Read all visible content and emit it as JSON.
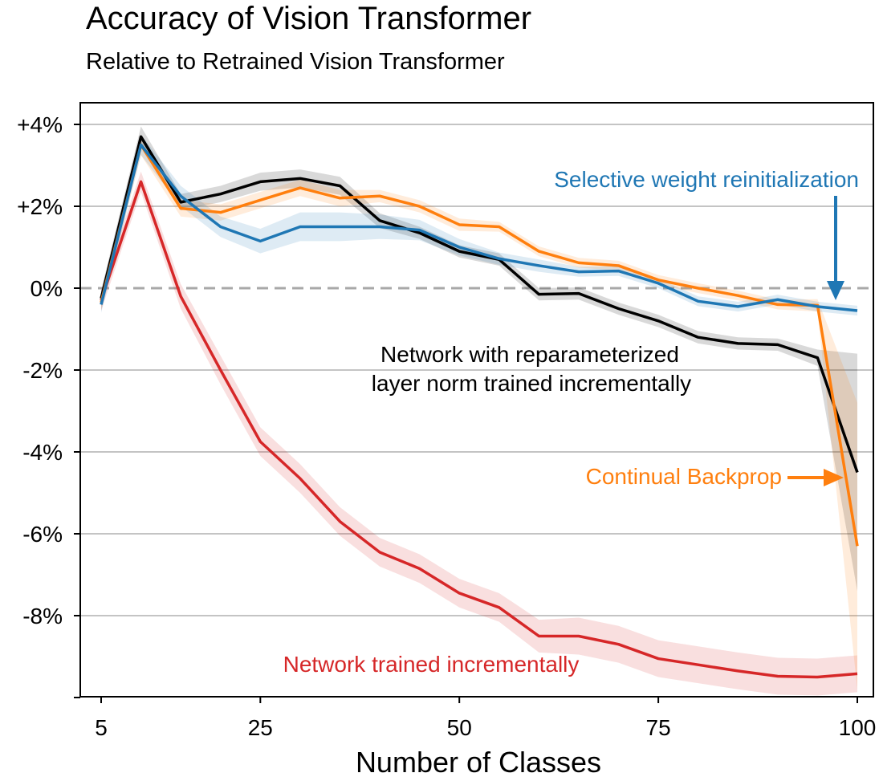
{
  "chart_data": {
    "type": "line",
    "title": "Accuracy of Vision Transformer",
    "subtitle": "Relative to Retrained Vision Transformer",
    "xlabel": "Number of Classes",
    "ylabel": "",
    "xlim": [
      5,
      100
    ],
    "ylim": [
      -9.9,
      4.5
    ],
    "x_ticks": [
      5,
      25,
      50,
      75,
      100
    ],
    "x_tick_labels": [
      "5",
      "25",
      "50",
      "75",
      "100"
    ],
    "y_ticks": [
      4,
      2,
      0,
      -2,
      -4,
      -6,
      -8
    ],
    "y_tick_labels": [
      "+4%",
      "+2%",
      "0%",
      "-2%",
      "-4%",
      "-6%",
      "-8%"
    ],
    "grid": "horizontal",
    "reference_line": 0,
    "x": [
      5,
      10,
      15,
      20,
      25,
      30,
      35,
      40,
      45,
      50,
      55,
      60,
      65,
      70,
      75,
      80,
      85,
      90,
      95,
      100
    ],
    "series": [
      {
        "name": "Network trained incrementally",
        "color": "#d62728",
        "values": [
          -0.3,
          2.6,
          -0.2,
          -2.0,
          -3.75,
          -4.65,
          -5.7,
          -6.45,
          -6.85,
          -7.45,
          -7.8,
          -8.5,
          -8.5,
          -8.7,
          -9.05,
          -9.2,
          -9.35,
          -9.48,
          -9.5,
          -9.42
        ],
        "band": [
          0.25,
          0.25,
          0.3,
          0.35,
          0.35,
          0.35,
          0.35,
          0.35,
          0.35,
          0.35,
          0.35,
          0.4,
          0.45,
          0.45,
          0.45,
          0.45,
          0.45,
          0.45,
          0.45,
          0.45
        ]
      },
      {
        "name": "Network with reparameterized layer norm trained incrementally",
        "color": "#000000",
        "values": [
          -0.25,
          3.7,
          2.1,
          2.3,
          2.6,
          2.68,
          2.5,
          1.65,
          1.35,
          0.9,
          0.7,
          -0.15,
          -0.13,
          -0.5,
          -0.8,
          -1.2,
          -1.35,
          -1.38,
          -1.7,
          -4.5
        ],
        "band": [
          0.2,
          0.25,
          0.2,
          0.2,
          0.22,
          0.22,
          0.22,
          0.18,
          0.15,
          0.15,
          0.15,
          0.15,
          0.15,
          0.15,
          0.15,
          0.15,
          0.15,
          0.15,
          0.2,
          2.9
        ]
      },
      {
        "name": "Continual Backprop",
        "color": "#ff7f0e",
        "values": [
          -0.35,
          3.5,
          1.95,
          1.85,
          2.15,
          2.45,
          2.2,
          2.25,
          2.0,
          1.55,
          1.5,
          0.9,
          0.62,
          0.55,
          0.2,
          0.0,
          -0.18,
          -0.4,
          -0.42,
          -6.3
        ],
        "band": [
          0.2,
          0.25,
          0.2,
          0.2,
          0.2,
          0.2,
          0.2,
          0.15,
          0.15,
          0.15,
          0.12,
          0.12,
          0.12,
          0.12,
          0.12,
          0.12,
          0.12,
          0.12,
          0.15,
          3.5
        ]
      },
      {
        "name": "Selective weight reinitialization",
        "color": "#1f77b4",
        "values": [
          -0.4,
          3.5,
          2.25,
          1.5,
          1.15,
          1.5,
          1.5,
          1.5,
          1.42,
          1.0,
          0.72,
          0.55,
          0.4,
          0.42,
          0.12,
          -0.32,
          -0.45,
          -0.28,
          -0.45,
          -0.55
        ],
        "band": [
          0.2,
          0.25,
          0.25,
          0.25,
          0.3,
          0.35,
          0.35,
          0.3,
          0.25,
          0.2,
          0.15,
          0.15,
          0.12,
          0.12,
          0.12,
          0.12,
          0.12,
          0.12,
          0.12,
          0.12
        ]
      }
    ],
    "annotations": [
      {
        "text": "Selective weight reinitialization",
        "color": "#1f77b4"
      },
      {
        "text": "Network with reparameterized",
        "color": "#000000"
      },
      {
        "text": "layer norm trained incrementally",
        "color": "#000000"
      },
      {
        "text": "Continual Backprop",
        "color": "#ff7f0e"
      },
      {
        "text": "Network trained incrementally",
        "color": "#d62728"
      }
    ]
  }
}
